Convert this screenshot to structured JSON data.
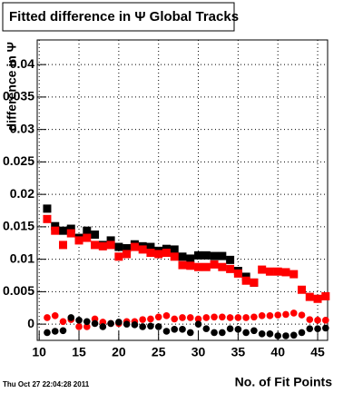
{
  "chart_data": {
    "type": "scatter",
    "title": "Fitted difference in Ψ   Global Tracks",
    "x_label": "No. of Fit Points",
    "y_label": "difference in Ψ",
    "timestamp": "Thu Oct 27 22:04:28 2011",
    "x": [
      11,
      12,
      13,
      14,
      15,
      16,
      17,
      18,
      19,
      20,
      21,
      22,
      23,
      24,
      25,
      26,
      27,
      28,
      29,
      30,
      31,
      32,
      33,
      34,
      35,
      36,
      37,
      38,
      39,
      40,
      41,
      42,
      43,
      44,
      45,
      46
    ],
    "series": [
      {
        "color": "#000000",
        "marker": "square",
        "values": [
          0.0178,
          0.0151,
          0.0144,
          0.0147,
          0.0133,
          0.0144,
          0.0138,
          0.0122,
          0.0129,
          0.0119,
          0.0117,
          0.0123,
          0.012,
          0.0119,
          0.0113,
          0.0116,
          0.0115,
          0.0104,
          0.0101,
          0.0106,
          0.0106,
          0.0105,
          0.0105,
          0.0099,
          0.0082,
          0.0073,
          0.0064,
          null,
          null,
          null,
          null,
          null,
          null,
          null,
          null,
          null
        ]
      },
      {
        "color": "#ff0000",
        "marker": "square",
        "values": [
          0.0162,
          0.0144,
          0.0122,
          0.014,
          0.0129,
          0.0133,
          0.0122,
          0.012,
          0.0122,
          0.0104,
          0.0108,
          0.0119,
          0.0115,
          0.011,
          0.0108,
          0.011,
          0.0104,
          0.0091,
          0.009,
          0.0088,
          0.0088,
          0.0092,
          0.0088,
          0.0085,
          0.0078,
          0.0067,
          0.0064,
          0.0084,
          0.0081,
          0.0081,
          0.008,
          0.0077,
          0.0053,
          0.0042,
          0.0039,
          0.0043
        ]
      },
      {
        "color": "#ff0000",
        "marker": "circle",
        "values": [
          0.001,
          0.0013,
          0.0004,
          0.0007,
          -0.0004,
          -0.0004,
          0.0008,
          0.0003,
          0.0001,
          0.0001,
          0.0004,
          0.0004,
          0.0007,
          0.0008,
          0.0011,
          0.0013,
          0.0008,
          0.001,
          0.001,
          0.0008,
          0.001,
          0.0011,
          0.0011,
          0.001,
          0.001,
          0.001,
          0.0011,
          0.0013,
          0.0013,
          0.0014,
          0.0015,
          0.0017,
          0.0014,
          0.0007,
          0.0006,
          0.0006
        ]
      },
      {
        "color": "#000000",
        "marker": "circle",
        "values": [
          -0.0013,
          -0.0011,
          -0.001,
          0.001,
          0.0006,
          0.0004,
          0.0001,
          -0.0004,
          0.0001,
          0.0003,
          0,
          -0.0001,
          -0.0004,
          -0.0003,
          -0.0004,
          -0.0011,
          -0.0008,
          -0.0008,
          -0.0013,
          0,
          -0.0007,
          -0.0013,
          -0.0013,
          -0.0007,
          -0.0008,
          -0.0013,
          -0.001,
          -0.0015,
          -0.0015,
          -0.0018,
          -0.0018,
          -0.0017,
          -0.0013,
          -0.0007,
          -0.0007,
          -0.0006
        ]
      }
    ],
    "xlim": [
      9.75,
      46.25
    ],
    "xticks": [
      10,
      15,
      20,
      25,
      30,
      35,
      40,
      45
    ],
    "ylim": [
      -0.0025,
      0.0438
    ],
    "yticks": [
      0,
      0.005,
      0.01,
      0.015,
      0.02,
      0.025,
      0.03,
      0.035,
      0.04
    ],
    "grid": true
  }
}
